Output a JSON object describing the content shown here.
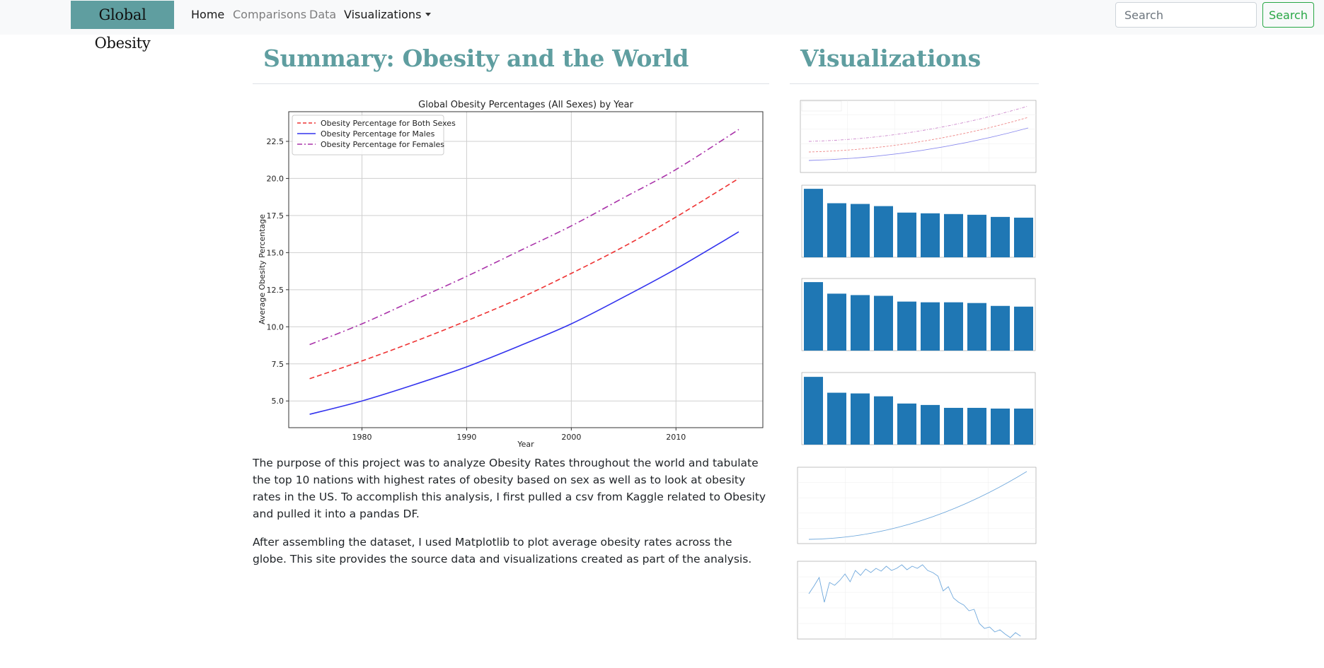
{
  "nav": {
    "brand": "Global Obesity",
    "links": [
      {
        "label": "Home",
        "active": true
      },
      {
        "label": "Comparisons",
        "active": false
      },
      {
        "label": "Data",
        "active": false
      },
      {
        "label": "Visualizations",
        "active": false,
        "dropdown": true
      }
    ],
    "search": {
      "placeholder": "Search",
      "button_label": "Search"
    }
  },
  "summary": {
    "heading": "Summary: Obesity and the World",
    "paragraphs": [
      "The purpose of this project was to analyze Obesity Rates throughout the world and tabulate the top 10 nations with highest rates of obesity based on sex as well as to look at obesity rates in the US. To accomplish this analysis, I first pulled a csv from Kaggle related to Obesity and pulled it into a pandas DF.",
      "After assembling the dataset, I used Matplotlib to plot average obesity rates across the globe. This site provides the source data and visualizations created as part of the analysis."
    ]
  },
  "visualizations": {
    "heading": "Visualizations"
  },
  "colors": {
    "accent": "#5f9ea0",
    "success": "#28a745",
    "both": "#ee3333",
    "males": "#3333ee",
    "females": "#aa33aa",
    "bar": "#1f77b4"
  },
  "chart_data": {
    "type": "line",
    "title": "Global Obesity Percentages (All Sexes) by Year",
    "xlabel": "Year",
    "ylabel": "Average Obesity Percentage",
    "xlim": [
      1973,
      2018.3
    ],
    "ylim": [
      3.2,
      24.5
    ],
    "xticks": [
      1980,
      1990,
      2000,
      2010
    ],
    "yticks": [
      5.0,
      7.5,
      10.0,
      12.5,
      15.0,
      17.5,
      20.0,
      22.5
    ],
    "grid": true,
    "legend_position": "top-left",
    "x": [
      1975,
      1980,
      1985,
      1990,
      1995,
      2000,
      2005,
      2010,
      2016
    ],
    "series": [
      {
        "name": "Obesity Percentage for Both Sexes",
        "style": "dashed",
        "color": "#ee3333",
        "values": [
          6.5,
          7.7,
          9.0,
          10.4,
          11.9,
          13.6,
          15.4,
          17.4,
          20.0
        ]
      },
      {
        "name": "Obesity Percentage for Males",
        "style": "solid",
        "color": "#3333ee",
        "values": [
          4.1,
          5.0,
          6.1,
          7.3,
          8.7,
          10.2,
          12.0,
          13.9,
          16.4
        ]
      },
      {
        "name": "Obesity Percentage for Females",
        "style": "dashdot",
        "color": "#aa33aa",
        "values": [
          8.8,
          10.2,
          11.8,
          13.4,
          15.1,
          16.8,
          18.7,
          20.6,
          23.3
        ]
      }
    ]
  }
}
